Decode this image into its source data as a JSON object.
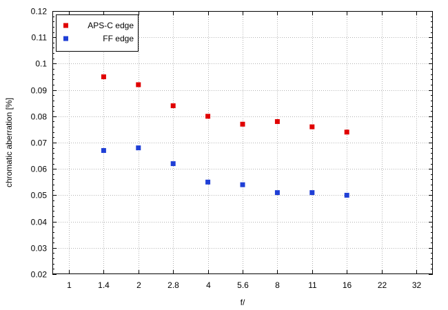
{
  "chart_data": {
    "type": "scatter",
    "title": "",
    "xlabel": "f/",
    "ylabel": "chromatic  aberration [%]",
    "x_categories": [
      "1",
      "1.4",
      "2",
      "2.8",
      "4",
      "5.6",
      "8",
      "11",
      "16",
      "22",
      "32"
    ],
    "ylim": [
      0.02,
      0.12
    ],
    "yticks": [
      "0.02",
      "0.03",
      "0.04",
      "0.05",
      "0.06",
      "0.07",
      "0.08",
      "0.09",
      "0.1",
      "0.11",
      "0.12"
    ],
    "grid": true,
    "legend_position": "top-left",
    "series": [
      {
        "name": "APS-C edge",
        "color": "#e00000",
        "points": [
          {
            "x": "1.4",
            "y": 0.095
          },
          {
            "x": "2",
            "y": 0.092
          },
          {
            "x": "2.8",
            "y": 0.084
          },
          {
            "x": "4",
            "y": 0.08
          },
          {
            "x": "5.6",
            "y": 0.077
          },
          {
            "x": "8",
            "y": 0.078
          },
          {
            "x": "11",
            "y": 0.076
          },
          {
            "x": "16",
            "y": 0.074
          }
        ]
      },
      {
        "name": "FF edge",
        "color": "#1f3fd6",
        "points": [
          {
            "x": "1.4",
            "y": 0.067
          },
          {
            "x": "2",
            "y": 0.068
          },
          {
            "x": "2.8",
            "y": 0.062
          },
          {
            "x": "4",
            "y": 0.055
          },
          {
            "x": "5.6",
            "y": 0.054
          },
          {
            "x": "8",
            "y": 0.051
          },
          {
            "x": "11",
            "y": 0.051
          },
          {
            "x": "16",
            "y": 0.05
          }
        ]
      }
    ]
  }
}
